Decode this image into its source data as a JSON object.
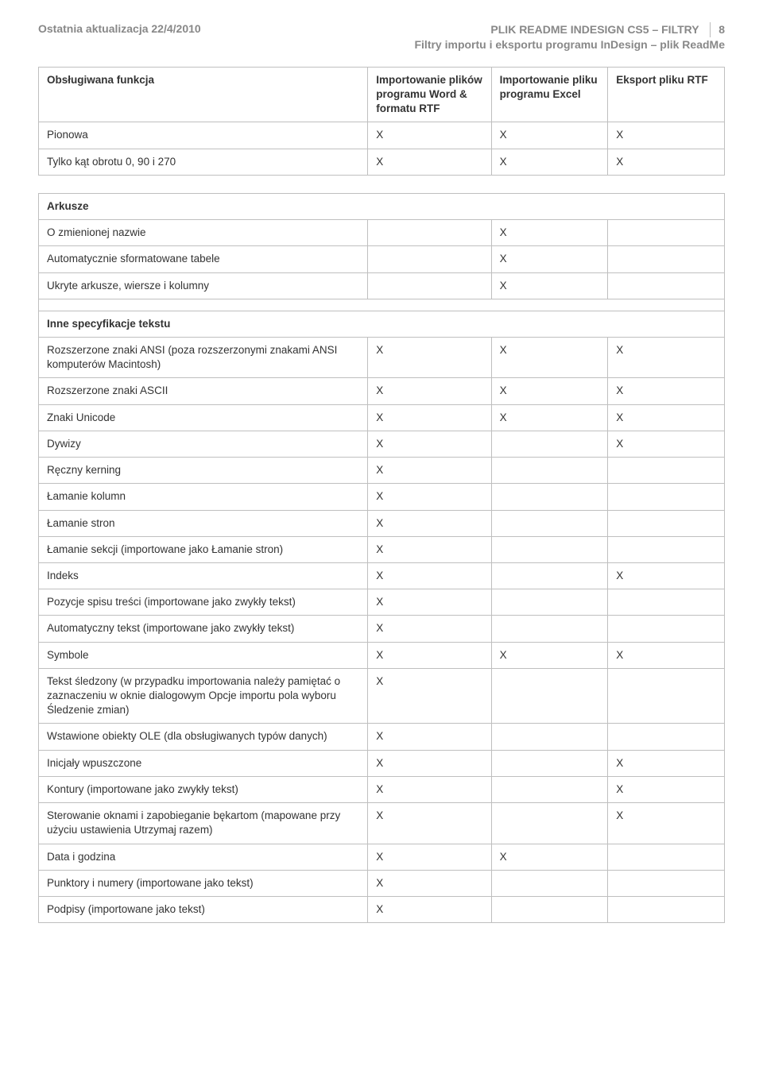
{
  "header": {
    "left": "Ostatnia aktualizacja 22/4/2010",
    "right_line1": "PLIK README INDESIGN CS5 – FILTRY",
    "right_line2": "Filtry importu i eksportu programu InDesign – plik ReadMe",
    "page_number": "8"
  },
  "table1": {
    "headers": {
      "col_a": "Obsługiwana funkcja",
      "col_b": "Importowanie plików programu Word & formatu RTF",
      "col_c": "Importowanie pliku programu Excel",
      "col_d": "Eksport pliku RTF"
    },
    "rows": [
      {
        "a": "Pionowa",
        "b": "X",
        "c": "X",
        "d": "X"
      },
      {
        "a": "Tylko kąt obrotu 0, 90 i 270",
        "b": "X",
        "c": "X",
        "d": "X"
      }
    ]
  },
  "table2": {
    "section_arkusze": "Arkusze",
    "rows_arkusze": [
      {
        "a": "O zmienionej nazwie",
        "b": "",
        "c": "X",
        "d": ""
      },
      {
        "a": "Automatycznie sformatowane tabele",
        "b": "",
        "c": "X",
        "d": ""
      },
      {
        "a": "Ukryte arkusze, wiersze i kolumny",
        "b": "",
        "c": "X",
        "d": ""
      }
    ],
    "section_inne": "Inne specyfikacje tekstu",
    "rows_inne": [
      {
        "a": "Rozszerzone znaki ANSI (poza rozszerzonymi znakami ANSI komputerów Macintosh)",
        "b": "X",
        "c": "X",
        "d": "X"
      },
      {
        "a": "Rozszerzone znaki ASCII",
        "b": "X",
        "c": "X",
        "d": "X"
      },
      {
        "a": "Znaki Unicode",
        "b": "X",
        "c": "X",
        "d": "X"
      },
      {
        "a": "Dywizy",
        "b": "X",
        "c": "",
        "d": "X"
      },
      {
        "a": "Ręczny kerning",
        "b": "X",
        "c": "",
        "d": ""
      },
      {
        "a": "Łamanie kolumn",
        "b": "X",
        "c": "",
        "d": ""
      },
      {
        "a": "Łamanie stron",
        "b": "X",
        "c": "",
        "d": ""
      },
      {
        "a": "Łamanie sekcji (importowane jako Łamanie stron)",
        "b": "X",
        "c": "",
        "d": ""
      },
      {
        "a": "Indeks",
        "b": "X",
        "c": "",
        "d": "X"
      },
      {
        "a": "Pozycje spisu treści (importowane jako zwykły tekst)",
        "b": "X",
        "c": "",
        "d": ""
      },
      {
        "a": "Automatyczny tekst (importowane jako zwykły tekst)",
        "b": "X",
        "c": "",
        "d": ""
      },
      {
        "a": "Symbole",
        "b": "X",
        "c": "X",
        "d": "X"
      },
      {
        "a": "Tekst śledzony (w przypadku importowania należy pamiętać o zaznaczeniu w oknie dialogowym Opcje importu pola wyboru Śledzenie zmian)",
        "b": "X",
        "c": "",
        "d": ""
      },
      {
        "a": "Wstawione obiekty OLE (dla obsługiwanych typów danych)",
        "b": "X",
        "c": "",
        "d": ""
      },
      {
        "a": "Inicjały wpuszczone",
        "b": "X",
        "c": "",
        "d": "X"
      },
      {
        "a": "Kontury (importowane jako zwykły tekst)",
        "b": "X",
        "c": "",
        "d": "X"
      },
      {
        "a": "Sterowanie oknami i zapobieganie bękartom (mapowane przy użyciu ustawienia Utrzymaj razem)",
        "b": "X",
        "c": "",
        "d": "X"
      },
      {
        "a": "Data i godzina",
        "b": "X",
        "c": "X",
        "d": ""
      },
      {
        "a": "Punktory i numery (importowane jako tekst)",
        "b": "X",
        "c": "",
        "d": ""
      },
      {
        "a": "Podpisy (importowane jako tekst)",
        "b": "X",
        "c": "",
        "d": ""
      }
    ]
  }
}
